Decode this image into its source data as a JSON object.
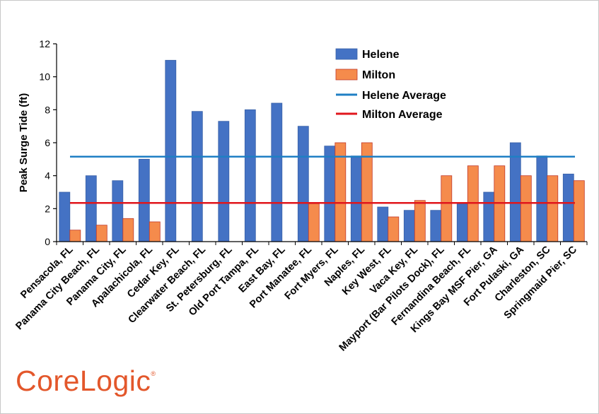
{
  "brand": {
    "logo_text": "CoreLogic",
    "logo_mark": "®",
    "color": "#e3572b"
  },
  "chart_data": {
    "type": "bar",
    "ylabel": "Peak Surge Tide (ft)",
    "xlabel": "",
    "ylim": [
      0,
      12
    ],
    "yticks": [
      0,
      2,
      4,
      6,
      8,
      10,
      12
    ],
    "grid": false,
    "legend_position": "top-center",
    "categories": [
      "Pensacola, FL",
      "Panama City Beach, FL",
      "Panama City, FL",
      "Apalachicola, FL",
      "Cedar Key, FL",
      "Clearwater Beach, FL",
      "St. Petersburg, FL",
      "Old Port Tampa, FL",
      "East Bay, FL",
      "Port Manatee, FL",
      "Fort Myers, FL",
      "Naples, FL",
      "Key West, FL",
      "Vaca Key, FL",
      "Mayport (Bar Pilots Dock), FL",
      "Fernandina Beach, FL",
      "Kings Bay MSF Pier, GA",
      "Fort Pulaski, GA",
      "Charleston, SC",
      "Springmaid Pier, SC"
    ],
    "series": [
      {
        "name": "Helene",
        "color": "#4472c4",
        "values": [
          3.0,
          4.0,
          3.7,
          5.0,
          11.0,
          7.9,
          7.3,
          8.0,
          8.4,
          7.0,
          5.8,
          5.2,
          2.1,
          1.9,
          1.9,
          2.3,
          3.0,
          6.0,
          5.2,
          4.1
        ]
      },
      {
        "name": "Milton",
        "color": "#f58b4c",
        "values": [
          0.7,
          1.0,
          1.4,
          1.2,
          null,
          null,
          null,
          null,
          null,
          2.3,
          6.0,
          6.0,
          1.5,
          2.5,
          4.0,
          4.6,
          4.6,
          4.0,
          4.0,
          3.7
        ]
      }
    ],
    "reference_lines": [
      {
        "name": "Helene Average",
        "value": 5.15,
        "color": "#1f7fc4"
      },
      {
        "name": "Milton Average",
        "value": 2.35,
        "color": "#e0161c"
      }
    ]
  }
}
